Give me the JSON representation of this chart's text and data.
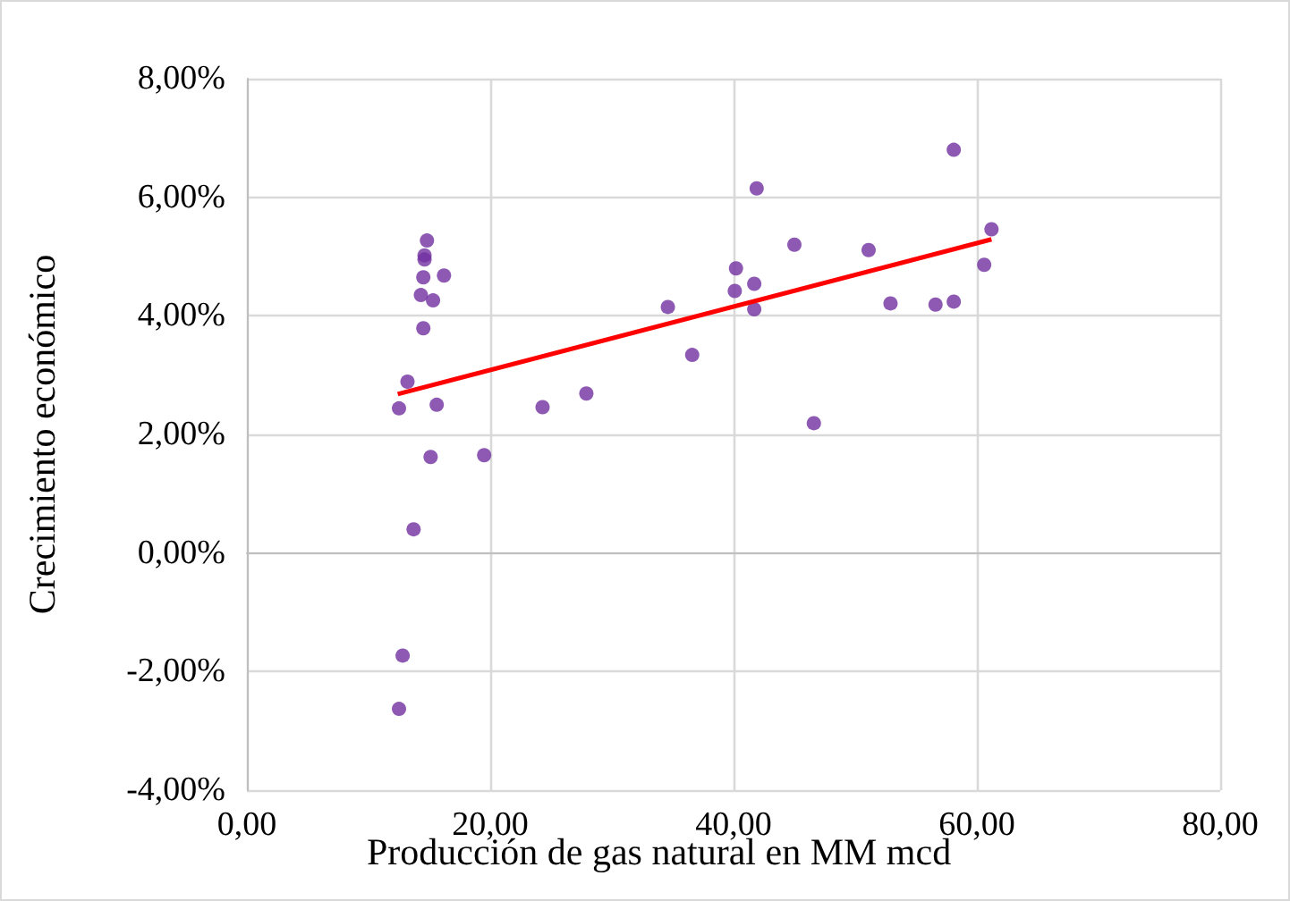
{
  "chart_data": {
    "type": "scatter",
    "xlabel": "Producción de gas natural en MM mcd",
    "ylabel": "Crecimiento económico",
    "xlim": [
      0,
      80
    ],
    "xticks": [
      {
        "value": 0,
        "label": "0,00"
      },
      {
        "value": 20,
        "label": "20,00"
      },
      {
        "value": 40,
        "label": "40,00"
      },
      {
        "value": 60,
        "label": "60,00"
      },
      {
        "value": 80,
        "label": "80,00"
      }
    ],
    "ylim": [
      -4,
      8
    ],
    "yticks": [
      {
        "value": -4,
        "label": "-4,00%"
      },
      {
        "value": -2,
        "label": "-2,00%"
      },
      {
        "value": 0,
        "label": "0,00%"
      },
      {
        "value": 2,
        "label": "2,00%"
      },
      {
        "value": 4,
        "label": "4,00%"
      },
      {
        "value": 6,
        "label": "6,00%"
      },
      {
        "value": 8,
        "label": "8,00%"
      }
    ],
    "grid": true,
    "series": [
      {
        "color": "#7030a0",
        "x": [
          14.8,
          14.6,
          14.6,
          14.5,
          16.2,
          14.3,
          15.3,
          14.5,
          13.2,
          12.5,
          15.6,
          24.3,
          27.9,
          15.1,
          19.5,
          13.7,
          12.8,
          12.5,
          58.1,
          41.9,
          61.2,
          45.0,
          51.1,
          60.6,
          40.2,
          41.7,
          40.1,
          34.6,
          41.7,
          52.9,
          56.6,
          58.1,
          36.6,
          46.6
        ],
        "values": [
          5.27,
          5.02,
          4.95,
          4.65,
          4.68,
          4.35,
          4.26,
          3.79,
          2.89,
          2.44,
          2.5,
          2.46,
          2.69,
          1.62,
          1.65,
          0.4,
          -1.73,
          -2.63,
          6.8,
          6.15,
          5.46,
          5.2,
          5.11,
          4.86,
          4.8,
          4.54,
          4.42,
          4.15,
          4.11,
          4.21,
          4.19,
          4.24,
          3.34,
          2.19
        ]
      },
      {
        "type": "line",
        "color": "#ff0000",
        "x": [
          12.4,
          61.2
        ],
        "values": [
          2.68,
          5.29
        ]
      }
    ]
  }
}
